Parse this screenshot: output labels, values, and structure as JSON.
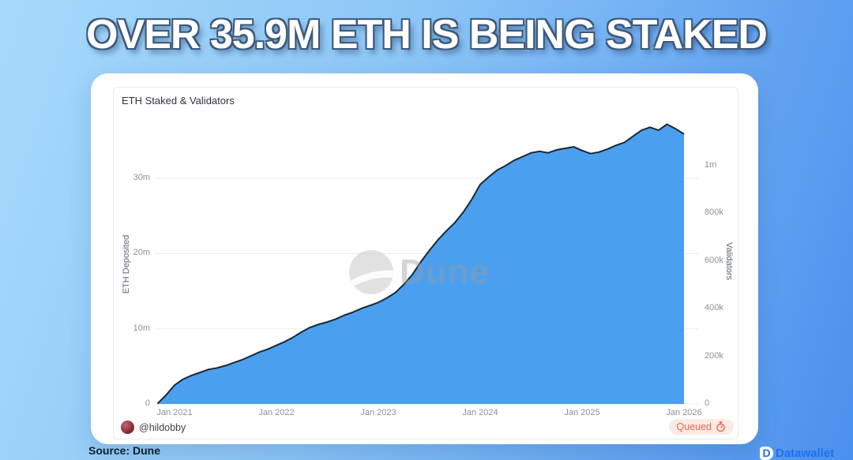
{
  "page": {
    "headline": "OVER 35.9M ETH IS BEING STAKED",
    "source_label": "Source: Dune",
    "partner_logo_text": "Datawallet"
  },
  "chart": {
    "title": "ETH Staked & Validators",
    "author_handle": "@hildobby",
    "status_badge": "Queued",
    "watermark": "Dune"
  },
  "colors": {
    "background_gradient": [
      "#a6dafb",
      "#8cc6f6",
      "#4b90ee"
    ],
    "area_fill": "#4aa0ef",
    "line_stroke": "#1b2732",
    "gridline": "#ececec",
    "badge_bg": "#fceae5",
    "badge_text": "#e4674a"
  },
  "chart_data": {
    "type": "area",
    "title": "ETH Staked & Validators",
    "legend": "none",
    "grid": "horizontal",
    "x_axis": {
      "ticks": [
        {
          "label": "Jan 2021",
          "date": "2021-01"
        },
        {
          "label": "Jan 2022",
          "date": "2022-01"
        },
        {
          "label": "Jan 2023",
          "date": "2023-01"
        },
        {
          "label": "Jan 2024",
          "date": "2024-01"
        },
        {
          "label": "Jan 2025",
          "date": "2025-01"
        },
        {
          "label": "Jan 2026",
          "date": "2026-01"
        }
      ],
      "range": [
        "2020-11",
        "2026-01"
      ]
    },
    "y_axis_left": {
      "label": "ETH Deposited",
      "ticks": [
        {
          "label": "0",
          "value_m": 0
        },
        {
          "label": "10m",
          "value_m": 10
        },
        {
          "label": "20m",
          "value_m": 20
        },
        {
          "label": "30m",
          "value_m": 30
        }
      ],
      "range_m": [
        0,
        38.5
      ]
    },
    "y_axis_right": {
      "label": "Validators",
      "ticks": [
        {
          "label": "0",
          "value_k": 0
        },
        {
          "label": "200k",
          "value_k": 200
        },
        {
          "label": "400k",
          "value_k": 400
        },
        {
          "label": "600k",
          "value_k": 600
        },
        {
          "label": "800k",
          "value_k": 800
        },
        {
          "label": "1m",
          "value_k": 1000
        }
      ],
      "range_k": [
        0,
        1325
      ]
    },
    "series": [
      {
        "name": "ETH Deposited",
        "axis": "left",
        "unit": "million ETH",
        "points": [
          [
            "2020-11",
            0.05
          ],
          [
            "2020-12",
            1.2
          ],
          [
            "2021-01",
            2.5
          ],
          [
            "2021-02",
            3.3
          ],
          [
            "2021-03",
            3.8
          ],
          [
            "2021-04",
            4.2
          ],
          [
            "2021-05",
            4.6
          ],
          [
            "2021-06",
            4.8
          ],
          [
            "2021-07",
            5.1
          ],
          [
            "2021-08",
            5.5
          ],
          [
            "2021-09",
            5.9
          ],
          [
            "2021-10",
            6.4
          ],
          [
            "2021-11",
            6.9
          ],
          [
            "2021-12",
            7.3
          ],
          [
            "2022-01",
            7.8
          ],
          [
            "2022-02",
            8.3
          ],
          [
            "2022-03",
            8.9
          ],
          [
            "2022-04",
            9.6
          ],
          [
            "2022-05",
            10.2
          ],
          [
            "2022-06",
            10.6
          ],
          [
            "2022-07",
            10.9
          ],
          [
            "2022-08",
            11.3
          ],
          [
            "2022-09",
            11.8
          ],
          [
            "2022-10",
            12.2
          ],
          [
            "2022-11",
            12.7
          ],
          [
            "2022-12",
            13.1
          ],
          [
            "2023-01",
            13.5
          ],
          [
            "2023-02",
            14.1
          ],
          [
            "2023-03",
            14.8
          ],
          [
            "2023-04",
            15.9
          ],
          [
            "2023-05",
            17.2
          ],
          [
            "2023-06",
            18.9
          ],
          [
            "2023-07",
            20.4
          ],
          [
            "2023-08",
            21.8
          ],
          [
            "2023-09",
            23.0
          ],
          [
            "2023-10",
            24.1
          ],
          [
            "2023-11",
            25.5
          ],
          [
            "2023-12",
            27.2
          ],
          [
            "2024-01",
            29.2
          ],
          [
            "2024-02",
            30.2
          ],
          [
            "2024-03",
            31.1
          ],
          [
            "2024-04",
            31.7
          ],
          [
            "2024-05",
            32.4
          ],
          [
            "2024-06",
            32.9
          ],
          [
            "2024-07",
            33.4
          ],
          [
            "2024-08",
            33.6
          ],
          [
            "2024-09",
            33.4
          ],
          [
            "2024-10",
            33.8
          ],
          [
            "2024-11",
            34.0
          ],
          [
            "2024-12",
            34.2
          ],
          [
            "2025-01",
            33.7
          ],
          [
            "2025-02",
            33.3
          ],
          [
            "2025-03",
            33.5
          ],
          [
            "2025-04",
            33.9
          ],
          [
            "2025-05",
            34.4
          ],
          [
            "2025-06",
            34.8
          ],
          [
            "2025-07",
            35.6
          ],
          [
            "2025-08",
            36.4
          ],
          [
            "2025-09",
            36.8
          ],
          [
            "2025-10",
            36.4
          ],
          [
            "2025-11",
            37.2
          ],
          [
            "2025-12",
            36.6
          ],
          [
            "2026-01",
            35.9
          ]
        ]
      }
    ]
  }
}
